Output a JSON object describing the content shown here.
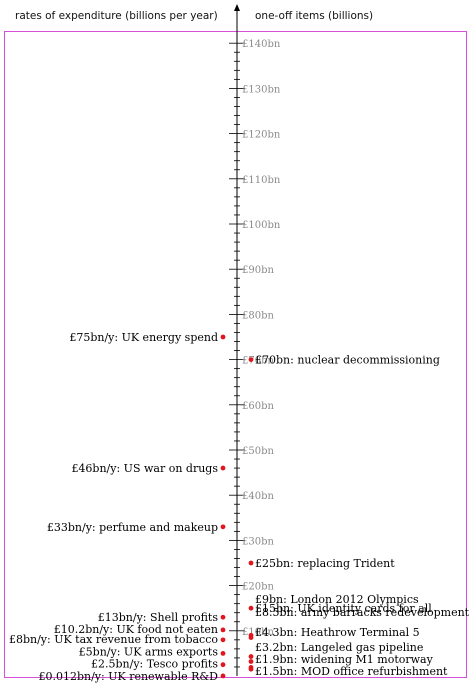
{
  "header": {
    "left_title": "rates of expenditure (billions per year)",
    "right_title": "one-off items (billions)"
  },
  "axis": {
    "unit": "bn",
    "min": 0,
    "max": 140,
    "major_step": 10,
    "minor_step": 2,
    "tick_labels": [
      "£10bn",
      "£20bn",
      "£30bn",
      "£40bn",
      "£50bn",
      "£60bn",
      "£70bn",
      "£80bn",
      "£90bn",
      "£100bn",
      "£110bn",
      "£120bn",
      "£130bn",
      "£140bn"
    ]
  },
  "colors": {
    "frame": "#d84fd8",
    "dot": "#e0161e",
    "axis": "#000000",
    "tick_label": "#8a8a8a"
  },
  "chart_data": {
    "type": "scatter",
    "ylim": [
      0,
      140
    ],
    "rates_per_year": [
      {
        "label": "£75bn/y: UK energy spend",
        "value": 75
      },
      {
        "label": "£46bn/y: US war on drugs",
        "value": 46
      },
      {
        "label": "£33bn/y: perfume and makeup",
        "value": 33
      },
      {
        "label": "£13bn/y: Shell profits",
        "value": 13
      },
      {
        "label": "£10.2bn/y: UK food not eaten",
        "value": 10.2
      },
      {
        "label": "£8bn/y: UK tax revenue from tobacco",
        "value": 8
      },
      {
        "label": "£5bn/y: UK arms exports",
        "value": 5
      },
      {
        "label": "£2.5bn/y: Tesco profits",
        "value": 2.5
      },
      {
        "label": "£0.012bn/y: UK renewable R&D",
        "value": 0.012
      }
    ],
    "one_off_items": [
      {
        "label": "£70bn: nuclear decommissioning",
        "value": 70
      },
      {
        "label": "£25bn: replacing Trident",
        "value": 25
      },
      {
        "label": "£15bn: UK identity cards for all",
        "value": 15
      },
      {
        "label": "£9bn: London 2012 Olympics",
        "value": 9
      },
      {
        "label": "£8.5bn: army barracks redevelopment",
        "value": 8.5
      },
      {
        "label": "£4.3bn: Heathrow Terminal 5",
        "value": 4.3
      },
      {
        "label": "£3.2bn: Langeled gas pipeline",
        "value": 3.2
      },
      {
        "label": "£1.9bn: widening M1 motorway",
        "value": 1.9
      },
      {
        "label": "£1.5bn: MOD office refurbishment",
        "value": 1.5
      }
    ]
  }
}
